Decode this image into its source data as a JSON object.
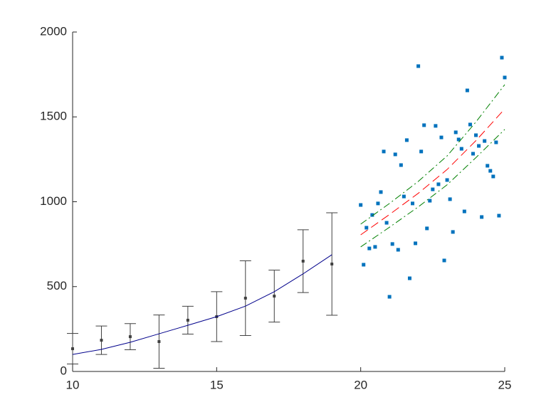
{
  "chart_data": {
    "type": "combo",
    "xlim": [
      10,
      25
    ],
    "ylim": [
      0,
      2000
    ],
    "xticks": [
      10,
      15,
      20,
      25
    ],
    "yticks": [
      0,
      500,
      1000,
      1500,
      2000
    ],
    "series": [
      {
        "type": "errorbar",
        "color": "#404040",
        "x": [
          10,
          11,
          12,
          13,
          14,
          15,
          16,
          17,
          18,
          19
        ],
        "values": [
          134,
          184,
          205,
          176,
          302,
          323,
          432,
          444,
          650,
          633
        ],
        "errors": [
          90,
          84,
          77,
          157,
          82,
          147,
          220,
          153,
          185,
          302
        ]
      },
      {
        "type": "line",
        "color": "#00008b",
        "dash": "solid",
        "x": [
          10,
          11,
          12,
          13,
          14,
          15,
          16,
          17,
          18,
          19
        ],
        "values": [
          100,
          130,
          172,
          222,
          272,
          323,
          385,
          470,
          575,
          688
        ]
      },
      {
        "type": "scatter",
        "color": "#0072bd",
        "x": [
          20.0,
          20.1,
          20.2,
          20.3,
          20.4,
          20.5,
          20.6,
          20.7,
          20.8,
          20.9,
          21.0,
          21.1,
          21.2,
          21.3,
          21.4,
          21.5,
          21.6,
          21.7,
          21.8,
          21.9,
          22.0,
          22.1,
          22.2,
          22.3,
          22.4,
          22.5,
          22.6,
          22.7,
          22.8,
          22.9,
          23.0,
          23.1,
          23.2,
          23.3,
          23.4,
          23.5,
          23.6,
          23.7,
          23.8,
          23.9,
          24.0,
          24.1,
          24.2,
          24.3,
          24.4,
          24.5,
          24.6,
          24.7,
          24.8,
          24.9,
          25.0
        ],
        "values": [
          981,
          629,
          847,
          725,
          922,
          734,
          990,
          1057,
          1296,
          876,
          440,
          751,
          1279,
          717,
          1216,
          1031,
          1363,
          549,
          990,
          755,
          1799,
          1296,
          1451,
          843,
          1006,
          1073,
          1447,
          1103,
          1379,
          654,
          1128,
          1015,
          822,
          1409,
          1367,
          1312,
          943,
          1656,
          1455,
          1283,
          1392,
          1329,
          910,
          1358,
          1212,
          1182,
          1149,
          1350,
          918,
          1849,
          1732
        ]
      },
      {
        "type": "line",
        "color": "#ff0000",
        "dash": "dashed",
        "x": [
          20,
          21,
          22,
          23,
          24,
          25
        ],
        "values": [
          805,
          925,
          1050,
          1190,
          1360,
          1547
        ]
      },
      {
        "type": "line",
        "color": "#008000",
        "dash": "dashdot",
        "x": [
          20,
          21,
          22,
          23,
          24,
          25
        ],
        "values": [
          868,
          990,
          1120,
          1270,
          1470,
          1690
        ]
      },
      {
        "type": "line",
        "color": "#008000",
        "dash": "dashdot",
        "x": [
          20,
          21,
          22,
          23,
          24,
          25
        ],
        "values": [
          734,
          850,
          970,
          1100,
          1260,
          1426
        ]
      }
    ]
  }
}
